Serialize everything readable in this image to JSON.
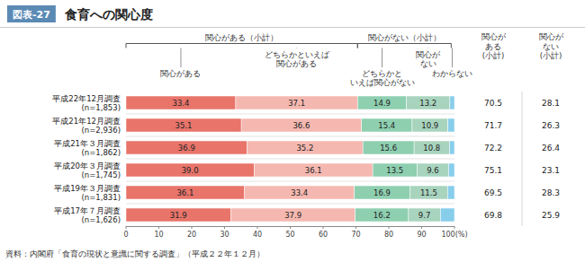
{
  "chart_data": {
    "type": "bar",
    "orientation": "horizontal",
    "stacked": true,
    "data_labels": true,
    "grid": false,
    "title": "食育への関心度",
    "figure_label": "図表-27",
    "source": "資料：内閣府「食育の現状と意識に関する調査」（平成２２年１２月）",
    "categories": [
      "平成22年12月調査\n(n=1,853)",
      "平成21年12月調査\n(n=2,936)",
      "平成21年３月調査\n(n=1,862)",
      "平成20年３月調査\n(n=1,745)",
      "平成19年３月調査\n(n=1,831)",
      "平成17年７月調査\n(n=1,626)"
    ],
    "series": [
      {
        "name": "関心がある",
        "color": "#e8746a",
        "values": [
          33.4,
          35.1,
          36.9,
          39.0,
          36.1,
          31.9
        ],
        "value_labels": [
          "33.4",
          "35.1",
          "36.9",
          "39.0",
          "36.1",
          "31.9"
        ]
      },
      {
        "name": "どちらかといえば\n関心がある",
        "color": "#f5b8b0",
        "values": [
          37.1,
          36.6,
          35.2,
          36.1,
          33.4,
          37.9
        ]
      },
      {
        "name": "どちらかと\nいえば関心がない",
        "color": "#8ecfb0",
        "values": [
          14.9,
          15.4,
          15.6,
          13.5,
          16.9,
          16.2
        ]
      },
      {
        "name": "関心が\nない",
        "color": "#a8d4be",
        "values": [
          13.2,
          10.9,
          10.8,
          9.6,
          11.5,
          9.7
        ]
      },
      {
        "name": "わからない",
        "color": "#87ceeb",
        "values": [
          1.4,
          2.0,
          1.5,
          1.8,
          2.1,
          4.3
        ],
        "value_labels": [
          null,
          null,
          null,
          null,
          null,
          null
        ]
      }
    ],
    "xlim": [
      0,
      100
    ],
    "xticks": [
      0,
      10,
      20,
      30,
      40,
      50,
      60,
      70,
      80,
      90,
      {
        "value": 100,
        "label": "100(%)"
      }
    ],
    "annotations": [
      {
        "text": "関心がある（小計）",
        "x": [
          0,
          70.5
        ]
      },
      {
        "text": "関心がない（小計）",
        "x": [
          70.5,
          99.0
        ]
      }
    ],
    "columns": [
      {
        "name": "関心が\nある\n(小計)",
        "values": [
          70.5,
          71.7,
          72.2,
          75.1,
          69.5,
          69.8
        ]
      },
      {
        "name": "関心が\nない\n(小計)",
        "values": [
          28.1,
          26.3,
          26.4,
          23.1,
          28.3,
          25.9
        ]
      }
    ]
  }
}
